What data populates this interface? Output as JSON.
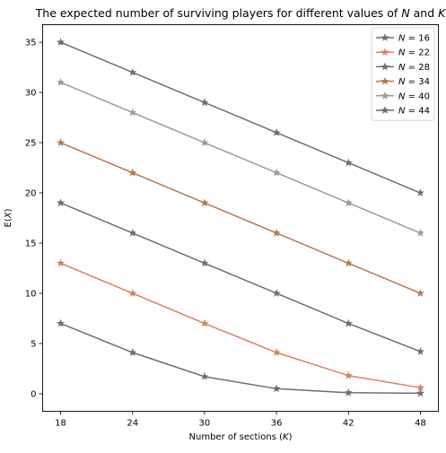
{
  "chart_data": {
    "type": "line",
    "title": "The expected number of surviving players for different values of N and K",
    "title_parts": {
      "prefix": "The expected number of surviving players for different values of ",
      "var1": "N",
      "middle": " and ",
      "var2": "K"
    },
    "xlabel": "Number of sections (K)",
    "xlabel_parts": {
      "prefix": "Number of sections (",
      "var": "K",
      "suffix": ")"
    },
    "ylabel": "E(X)",
    "ylabel_parts": {
      "prefix": "E(",
      "var": "X",
      "suffix": ")"
    },
    "x": [
      18,
      24,
      30,
      36,
      42,
      48
    ],
    "xlim": [
      16.5,
      49.5
    ],
    "ylim": [
      -1.75,
      36.75
    ],
    "xticks": [
      18,
      24,
      30,
      36,
      42,
      48
    ],
    "yticks": [
      0,
      5,
      10,
      15,
      20,
      25,
      30,
      35
    ],
    "grid": false,
    "legend_position": "top-right",
    "marker": "star",
    "series": [
      {
        "name": "N = 16",
        "var": "N",
        "num": "16",
        "color": "#6e6e6e",
        "values": [
          7.0,
          4.1,
          1.7,
          0.5,
          0.1,
          0.05
        ]
      },
      {
        "name": "N = 22",
        "var": "N",
        "num": "22",
        "color": "#d9825c",
        "values": [
          13.0,
          10.0,
          7.0,
          4.1,
          1.8,
          0.6
        ]
      },
      {
        "name": "N = 28",
        "var": "N",
        "num": "28",
        "color": "#6e6e6e",
        "values": [
          19.0,
          16.0,
          13.0,
          10.0,
          7.0,
          4.2
        ]
      },
      {
        "name": "N = 34",
        "var": "N",
        "num": "34",
        "color": "#b8764f",
        "values": [
          25.0,
          22.0,
          19.0,
          16.0,
          13.0,
          10.0
        ]
      },
      {
        "name": "N = 40",
        "var": "N",
        "num": "40",
        "color": "#9a9a9a",
        "values": [
          31.0,
          28.0,
          25.0,
          22.0,
          19.0,
          16.0
        ]
      },
      {
        "name": "N = 44",
        "var": "N",
        "num": "44",
        "color": "#6e6e6e",
        "values": [
          35.0,
          32.0,
          29.0,
          26.0,
          23.0,
          20.0
        ]
      }
    ]
  }
}
